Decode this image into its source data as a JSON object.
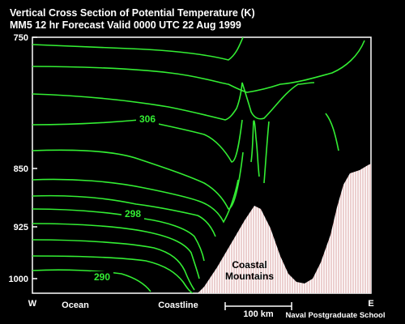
{
  "title": {
    "line1": "Vertical Cross Section of Potential Temperature (K)",
    "line2": "MM5 12 hr Forecast Valid 0000 UTC  22 Aug 1999"
  },
  "y_axis": {
    "ticks": [
      {
        "label": "750"
      },
      {
        "label": "850"
      },
      {
        "label": "925"
      },
      {
        "label": "1000"
      }
    ]
  },
  "x_axis": {
    "west": "W",
    "east": "E",
    "ocean": "Ocean",
    "coastline": "Coastline",
    "scale_label": "100 km"
  },
  "contour_labels": [
    "306",
    "298",
    "290"
  ],
  "terrain_label": {
    "line1": "Coastal",
    "line2": "Mountains"
  },
  "credit": "Naval Postgraduate School",
  "colors": {
    "background": "#000000",
    "contour": "#33ee33",
    "terrain_fill": "#ffffff",
    "terrain_hatch": "#d8a0a0",
    "text": "#ffffff"
  }
}
